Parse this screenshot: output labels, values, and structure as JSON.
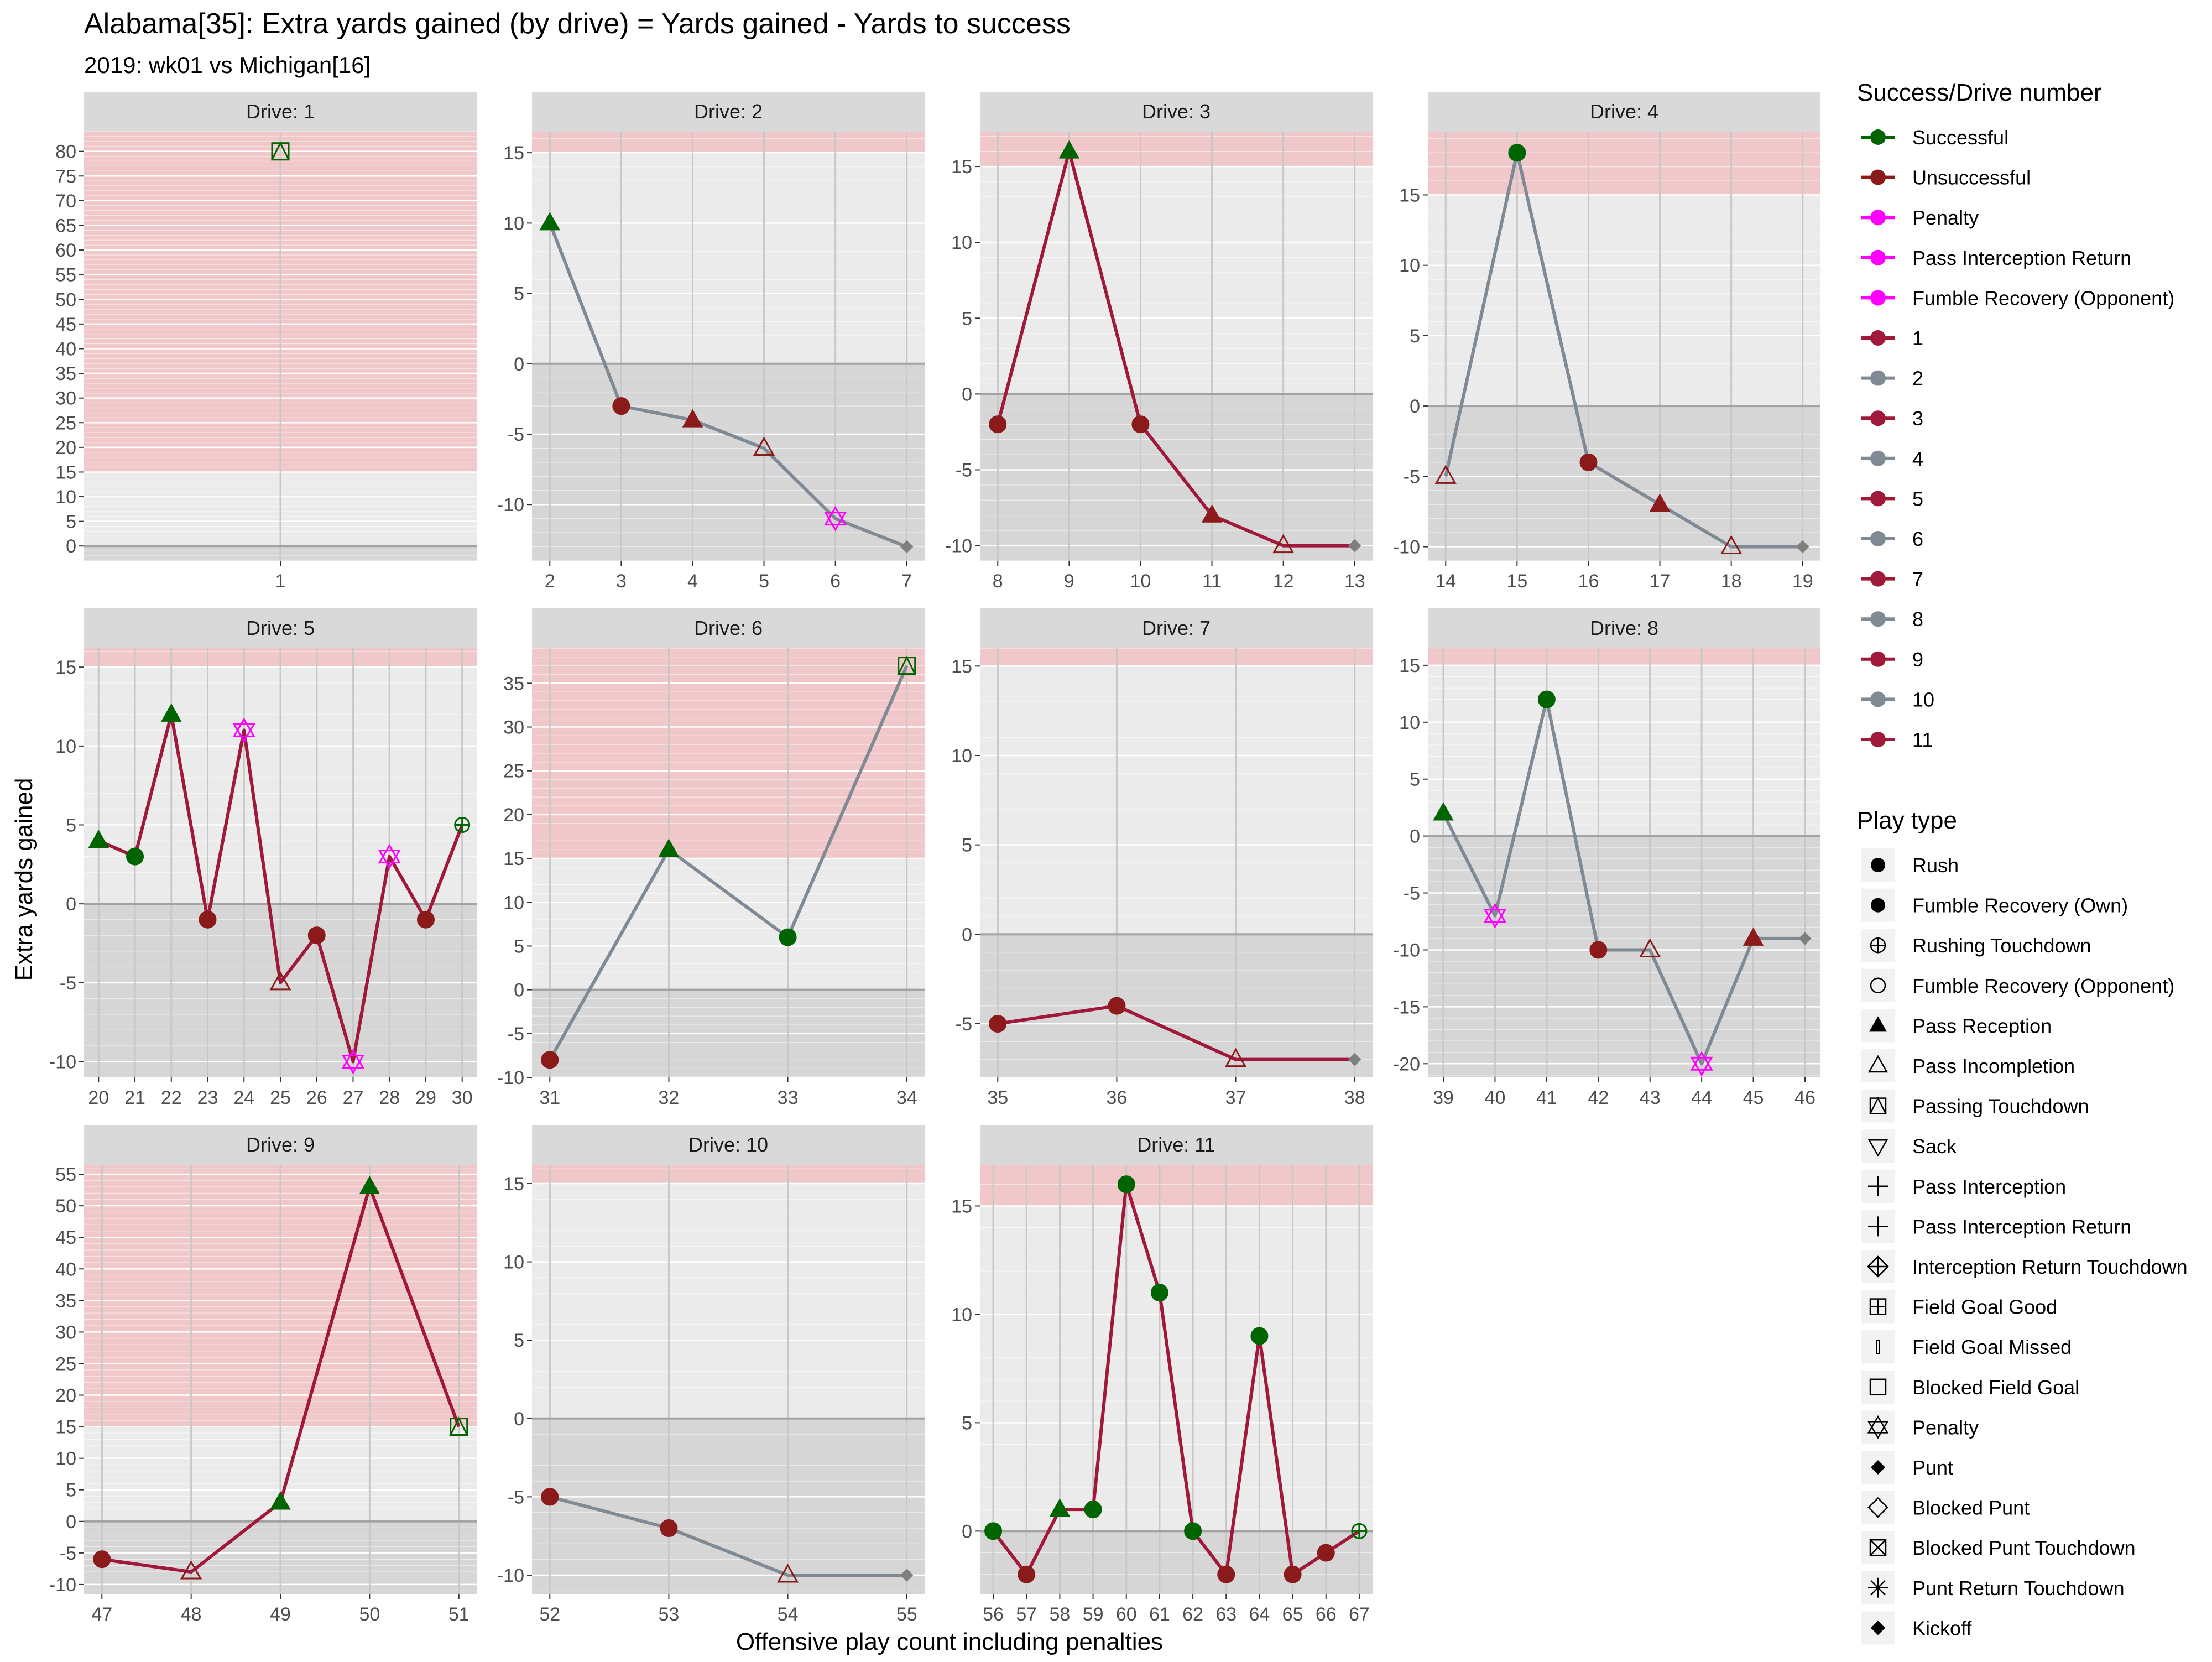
{
  "title": "Alabama[35]: Extra yards gained (by drive) = Yards gained - Yards to success",
  "subtitle": "2019: wk01 vs Michigan[16]",
  "xlabel": "Offensive play count including penalties",
  "ylabel": "Extra yards gained",
  "colors": {
    "successful": "#006400",
    "unsuccessful": "#8B1A1A",
    "penalty": "#FF00FF",
    "odd_drive_line": "#A0183A",
    "even_drive_line": "#808A94",
    "panel_bg": "#EBEBEB",
    "negative_bg": "#D6D6D6",
    "success_zone": "#F2C4C6",
    "strip_bg": "#D9D9D9",
    "grid": "#FFFFFF"
  },
  "legend_success": {
    "title": "Success/Drive number",
    "items": [
      {
        "label": "Successful",
        "color": "#006400"
      },
      {
        "label": "Unsuccessful",
        "color": "#8B1A1A"
      },
      {
        "label": "Penalty",
        "color": "#FF00FF"
      },
      {
        "label": "Pass Interception Return",
        "color": "#FF00FF"
      },
      {
        "label": "Fumble Recovery (Opponent)",
        "color": "#FF00FF"
      },
      {
        "label": "1",
        "color": "#A0183A"
      },
      {
        "label": "2",
        "color": "#808A94"
      },
      {
        "label": "3",
        "color": "#A0183A"
      },
      {
        "label": "4",
        "color": "#808A94"
      },
      {
        "label": "5",
        "color": "#A0183A"
      },
      {
        "label": "6",
        "color": "#808A94"
      },
      {
        "label": "7",
        "color": "#A0183A"
      },
      {
        "label": "8",
        "color": "#808A94"
      },
      {
        "label": "9",
        "color": "#A0183A"
      },
      {
        "label": "10",
        "color": "#808A94"
      },
      {
        "label": "11",
        "color": "#A0183A"
      }
    ]
  },
  "legend_playtype": {
    "title": "Play type",
    "items": [
      {
        "label": "Rush",
        "icon": "filled-circle-icon"
      },
      {
        "label": "Fumble Recovery (Own)",
        "icon": "filled-circle-icon"
      },
      {
        "label": "Rushing Touchdown",
        "icon": "circle-plus-icon"
      },
      {
        "label": "Fumble Recovery (Opponent)",
        "icon": "open-circle-icon"
      },
      {
        "label": "Pass Reception",
        "icon": "filled-triangle-icon"
      },
      {
        "label": "Pass Incompletion",
        "icon": "open-triangle-icon"
      },
      {
        "label": "Passing Touchdown",
        "icon": "square-triangle-icon"
      },
      {
        "label": "Sack",
        "icon": "down-triangle-icon"
      },
      {
        "label": "Pass Interception",
        "icon": "plus-icon"
      },
      {
        "label": "Pass Interception Return",
        "icon": "plus-icon"
      },
      {
        "label": "Interception Return Touchdown",
        "icon": "diamond-plus-icon"
      },
      {
        "label": "Field Goal Good",
        "icon": "square-plus-icon"
      },
      {
        "label": "Field Goal Missed",
        "icon": "thin-bar-icon"
      },
      {
        "label": "Blocked Field Goal",
        "icon": "open-square-icon"
      },
      {
        "label": "Penalty",
        "icon": "star-of-david-icon"
      },
      {
        "label": "Punt",
        "icon": "filled-diamond-icon"
      },
      {
        "label": "Blocked Punt",
        "icon": "open-diamond-icon"
      },
      {
        "label": "Blocked Punt Touchdown",
        "icon": "square-x-icon"
      },
      {
        "label": "Punt Return Touchdown",
        "icon": "asterisk-icon"
      },
      {
        "label": "Kickoff",
        "icon": "filled-diamond-icon"
      }
    ]
  },
  "chart_data": {
    "type": "line",
    "facet_by": "Drive",
    "success_threshold": 15,
    "panels": [
      {
        "strip": "Drive: 1",
        "ylim": [
          -3,
          84
        ],
        "yticks": [
          0,
          5,
          10,
          15,
          20,
          25,
          30,
          35,
          40,
          45,
          50,
          55,
          60,
          65,
          70,
          75,
          80
        ],
        "xticks": [
          1
        ],
        "xlim": [
          0.1,
          1.9
        ],
        "points": [
          {
            "x": 1,
            "y": 80,
            "type": "Passing Touchdown",
            "status": "Successful"
          }
        ]
      },
      {
        "strip": "Drive: 2",
        "ylim": [
          -14,
          16.5
        ],
        "yticks": [
          -10,
          -5,
          0,
          5,
          10,
          15
        ],
        "xticks": [
          2,
          3,
          4,
          5,
          6,
          7
        ],
        "xlim": [
          1.75,
          7.25
        ],
        "points": [
          {
            "x": 2,
            "y": 10,
            "type": "Pass Reception",
            "status": "Successful"
          },
          {
            "x": 3,
            "y": -3,
            "type": "Rush",
            "status": "Unsuccessful"
          },
          {
            "x": 4,
            "y": -4,
            "type": "Pass Reception",
            "status": "Unsuccessful"
          },
          {
            "x": 5,
            "y": -6,
            "type": "Pass Incompletion",
            "status": "Unsuccessful"
          },
          {
            "x": 6,
            "y": -11,
            "type": "Penalty",
            "status": "Penalty"
          },
          {
            "x": 7,
            "y": -13,
            "type": "Punt",
            "status": "Unsuccessful"
          }
        ]
      },
      {
        "strip": "Drive: 3",
        "ylim": [
          -11,
          17.3
        ],
        "yticks": [
          -10,
          -5,
          0,
          5,
          10,
          15
        ],
        "xticks": [
          8,
          9,
          10,
          11,
          12,
          13
        ],
        "xlim": [
          7.75,
          13.25
        ],
        "points": [
          {
            "x": 8,
            "y": -2,
            "type": "Rush",
            "status": "Unsuccessful"
          },
          {
            "x": 9,
            "y": 16,
            "type": "Pass Reception",
            "status": "Successful"
          },
          {
            "x": 10,
            "y": -2,
            "type": "Rush",
            "status": "Unsuccessful"
          },
          {
            "x": 11,
            "y": -8,
            "type": "Pass Reception",
            "status": "Unsuccessful"
          },
          {
            "x": 12,
            "y": -10,
            "type": "Pass Incompletion",
            "status": "Unsuccessful"
          },
          {
            "x": 13,
            "y": -10,
            "type": "Punt",
            "status": "Unsuccessful"
          }
        ]
      },
      {
        "strip": "Drive: 4",
        "ylim": [
          -11,
          19.5
        ],
        "yticks": [
          -10,
          -5,
          0,
          5,
          10,
          15
        ],
        "xticks": [
          14,
          15,
          16,
          17,
          18,
          19
        ],
        "xlim": [
          13.75,
          19.25
        ],
        "points": [
          {
            "x": 14,
            "y": -5,
            "type": "Pass Incompletion",
            "status": "Unsuccessful"
          },
          {
            "x": 15,
            "y": 18,
            "type": "Rush",
            "status": "Successful"
          },
          {
            "x": 16,
            "y": -4,
            "type": "Rush",
            "status": "Unsuccessful"
          },
          {
            "x": 17,
            "y": -7,
            "type": "Pass Reception",
            "status": "Unsuccessful"
          },
          {
            "x": 18,
            "y": -10,
            "type": "Pass Incompletion",
            "status": "Unsuccessful"
          },
          {
            "x": 19,
            "y": -10,
            "type": "Punt",
            "status": "Unsuccessful"
          }
        ]
      },
      {
        "strip": "Drive: 5",
        "ylim": [
          -11,
          16.2
        ],
        "yticks": [
          -10,
          -5,
          0,
          5,
          10,
          15
        ],
        "xticks": [
          20,
          21,
          22,
          23,
          24,
          25,
          26,
          27,
          28,
          29,
          30
        ],
        "xlim": [
          19.6,
          30.4
        ],
        "points": [
          {
            "x": 20,
            "y": 4,
            "type": "Pass Reception",
            "status": "Successful"
          },
          {
            "x": 21,
            "y": 3,
            "type": "Rush",
            "status": "Successful"
          },
          {
            "x": 22,
            "y": 12,
            "type": "Pass Reception",
            "status": "Successful"
          },
          {
            "x": 23,
            "y": -1,
            "type": "Rush",
            "status": "Unsuccessful"
          },
          {
            "x": 24,
            "y": 11,
            "type": "Penalty",
            "status": "Penalty"
          },
          {
            "x": 25,
            "y": -5,
            "type": "Pass Incompletion",
            "status": "Unsuccessful"
          },
          {
            "x": 26,
            "y": -2,
            "type": "Rush",
            "status": "Unsuccessful"
          },
          {
            "x": 27,
            "y": -10,
            "type": "Penalty",
            "status": "Penalty"
          },
          {
            "x": 28,
            "y": 3,
            "type": "Penalty",
            "status": "Penalty"
          },
          {
            "x": 29,
            "y": -1,
            "type": "Rush",
            "status": "Unsuccessful"
          },
          {
            "x": 30,
            "y": 5,
            "type": "Rushing Touchdown",
            "status": "Successful"
          }
        ]
      },
      {
        "strip": "Drive: 6",
        "ylim": [
          -10,
          39
        ],
        "yticks": [
          -10,
          -5,
          0,
          5,
          10,
          15,
          20,
          25,
          30,
          35
        ],
        "xticks": [
          31,
          32,
          33,
          34
        ],
        "xlim": [
          30.85,
          34.15
        ],
        "points": [
          {
            "x": 31,
            "y": -8,
            "type": "Rush",
            "status": "Unsuccessful"
          },
          {
            "x": 32,
            "y": 16,
            "type": "Pass Reception",
            "status": "Successful"
          },
          {
            "x": 33,
            "y": 6,
            "type": "Rush",
            "status": "Successful"
          },
          {
            "x": 34,
            "y": 37,
            "type": "Passing Touchdown",
            "status": "Successful"
          }
        ]
      },
      {
        "strip": "Drive: 7",
        "ylim": [
          -8,
          16
        ],
        "yticks": [
          -5,
          0,
          5,
          10,
          15
        ],
        "xticks": [
          35,
          36,
          37,
          38
        ],
        "xlim": [
          34.85,
          38.15
        ],
        "points": [
          {
            "x": 35,
            "y": -5,
            "type": "Rush",
            "status": "Unsuccessful"
          },
          {
            "x": 36,
            "y": -4,
            "type": "Rush",
            "status": "Unsuccessful"
          },
          {
            "x": 37,
            "y": -7,
            "type": "Pass Incompletion",
            "status": "Unsuccessful"
          },
          {
            "x": 38,
            "y": -7,
            "type": "Punt",
            "status": "Unsuccessful"
          }
        ]
      },
      {
        "strip": "Drive: 8",
        "ylim": [
          -21.2,
          16.5
        ],
        "yticks": [
          -20,
          -15,
          -10,
          -5,
          0,
          5,
          10,
          15
        ],
        "xticks": [
          39,
          40,
          41,
          42,
          43,
          44,
          45,
          46
        ],
        "xlim": [
          38.7,
          46.3
        ],
        "points": [
          {
            "x": 39,
            "y": 2,
            "type": "Pass Reception",
            "status": "Successful"
          },
          {
            "x": 40,
            "y": -7,
            "type": "Penalty",
            "status": "Penalty"
          },
          {
            "x": 41,
            "y": 12,
            "type": "Rush",
            "status": "Successful"
          },
          {
            "x": 42,
            "y": -10,
            "type": "Rush",
            "status": "Unsuccessful"
          },
          {
            "x": 43,
            "y": -10,
            "type": "Pass Incompletion",
            "status": "Unsuccessful"
          },
          {
            "x": 44,
            "y": -20,
            "type": "Penalty",
            "status": "Penalty"
          },
          {
            "x": 45,
            "y": -9,
            "type": "Pass Reception",
            "status": "Unsuccessful"
          },
          {
            "x": 46,
            "y": -9,
            "type": "Punt",
            "status": "Unsuccessful"
          }
        ]
      },
      {
        "strip": "Drive: 9",
        "ylim": [
          -11.5,
          56.5
        ],
        "yticks": [
          -10,
          -5,
          0,
          5,
          10,
          15,
          20,
          25,
          30,
          35,
          40,
          45,
          50,
          55
        ],
        "xticks": [
          47,
          48,
          49,
          50,
          51
        ],
        "xlim": [
          46.8,
          51.2
        ],
        "points": [
          {
            "x": 47,
            "y": -6,
            "type": "Rush",
            "status": "Unsuccessful"
          },
          {
            "x": 48,
            "y": -8,
            "type": "Pass Incompletion",
            "status": "Unsuccessful"
          },
          {
            "x": 49,
            "y": 3,
            "type": "Pass Reception",
            "status": "Successful"
          },
          {
            "x": 50,
            "y": 53,
            "type": "Pass Reception",
            "status": "Successful"
          },
          {
            "x": 51,
            "y": 15,
            "type": "Passing Touchdown",
            "status": "Successful"
          }
        ]
      },
      {
        "strip": "Drive: 10",
        "ylim": [
          -11.2,
          16.2
        ],
        "yticks": [
          -10,
          -5,
          0,
          5,
          10,
          15
        ],
        "xticks": [
          52,
          53,
          54,
          55
        ],
        "xlim": [
          51.85,
          55.15
        ],
        "points": [
          {
            "x": 52,
            "y": -5,
            "type": "Rush",
            "status": "Unsuccessful"
          },
          {
            "x": 53,
            "y": -7,
            "type": "Rush",
            "status": "Unsuccessful"
          },
          {
            "x": 54,
            "y": -10,
            "type": "Pass Incompletion",
            "status": "Unsuccessful"
          },
          {
            "x": 55,
            "y": -10,
            "type": "Punt",
            "status": "Unsuccessful"
          }
        ]
      },
      {
        "strip": "Drive: 11",
        "ylim": [
          -2.9,
          16.9
        ],
        "yticks": [
          0,
          5,
          10,
          15
        ],
        "xticks": [
          56,
          57,
          58,
          59,
          60,
          61,
          62,
          63,
          64,
          65,
          66,
          67
        ],
        "xlim": [
          55.6,
          67.4
        ],
        "points": [
          {
            "x": 56,
            "y": 0,
            "type": "Rush",
            "status": "Successful"
          },
          {
            "x": 57,
            "y": -2,
            "type": "Rush",
            "status": "Unsuccessful"
          },
          {
            "x": 58,
            "y": 1,
            "type": "Pass Reception",
            "status": "Successful"
          },
          {
            "x": 59,
            "y": 1,
            "type": "Rush",
            "status": "Successful"
          },
          {
            "x": 60,
            "y": 16,
            "type": "Rush",
            "status": "Successful"
          },
          {
            "x": 61,
            "y": 11,
            "type": "Rush",
            "status": "Successful"
          },
          {
            "x": 62,
            "y": 0,
            "type": "Rush",
            "status": "Successful"
          },
          {
            "x": 63,
            "y": -2,
            "type": "Rush",
            "status": "Unsuccessful"
          },
          {
            "x": 64,
            "y": 9,
            "type": "Rush",
            "status": "Successful"
          },
          {
            "x": 65,
            "y": -2,
            "type": "Rush",
            "status": "Unsuccessful"
          },
          {
            "x": 66,
            "y": -1,
            "type": "Rush",
            "status": "Unsuccessful"
          },
          {
            "x": 67,
            "y": 0,
            "type": "Rushing Touchdown",
            "status": "Successful"
          }
        ]
      }
    ]
  }
}
